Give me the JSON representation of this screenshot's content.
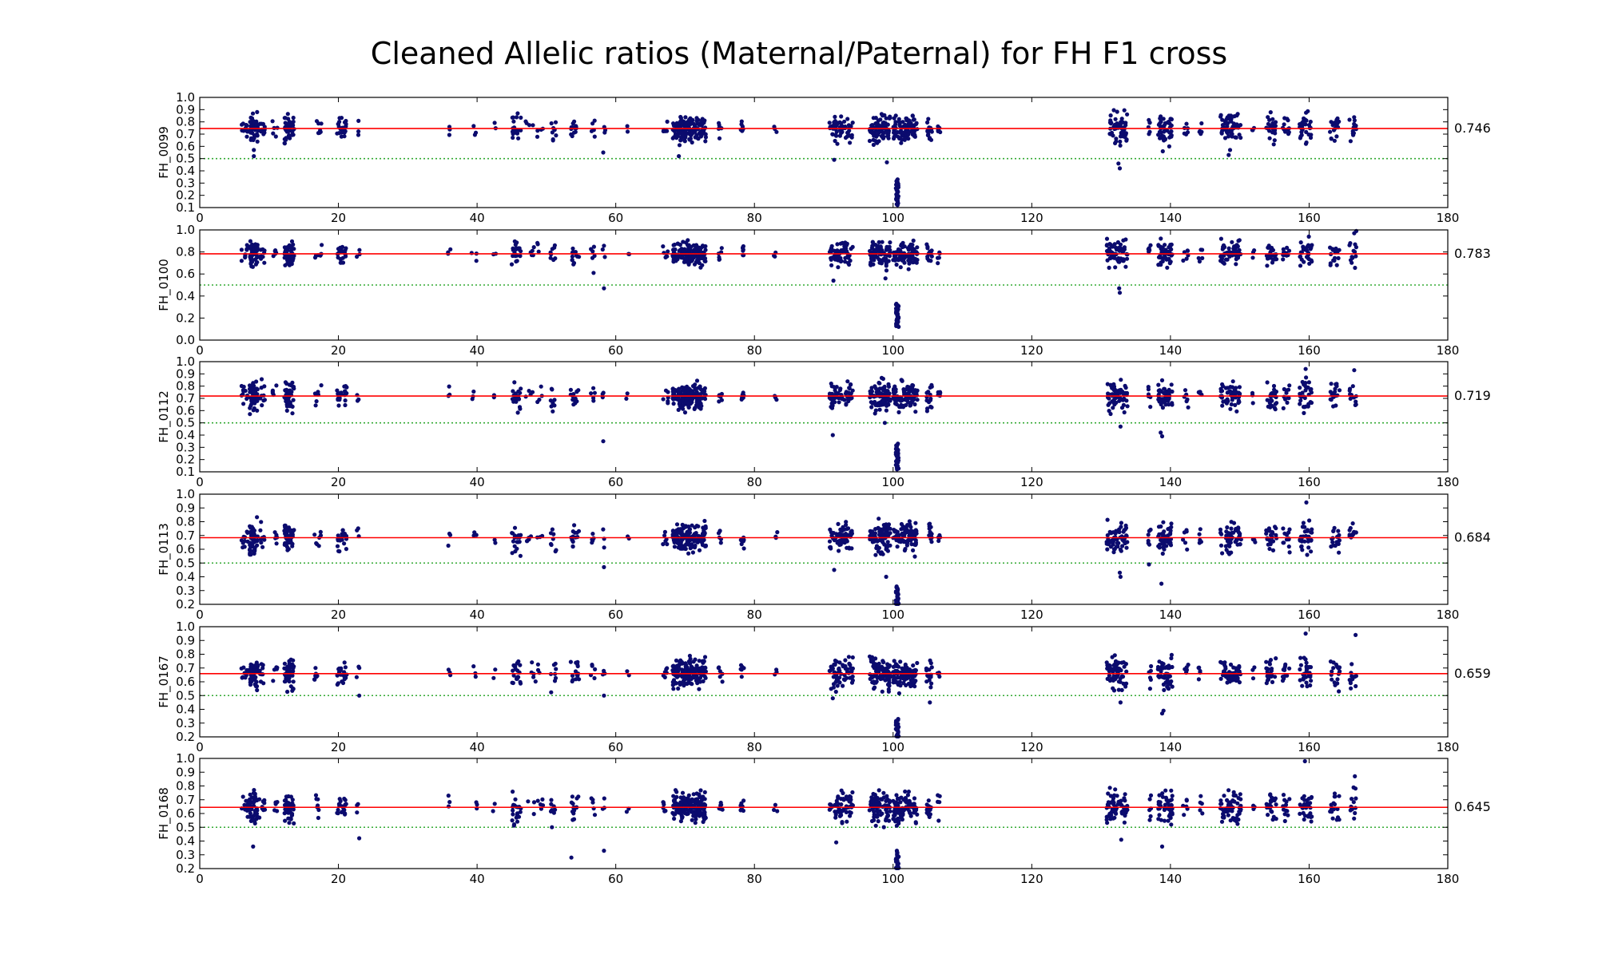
{
  "title": "Cleaned Allelic ratios (Maternal/Paternal) for FH F1 cross",
  "colors": {
    "points": "#0b0b6e",
    "mean_line": "#ff0000",
    "half_line": "#33aa33",
    "axes": "#000000"
  },
  "chart_data": [
    {
      "type": "scatter",
      "ylabel": "FH_0099",
      "mean": 0.746,
      "mean_label": "0.746",
      "reference": 0.5,
      "xlim": [
        0,
        180
      ],
      "ylim": [
        0.1,
        1.0
      ],
      "xticks": [
        "0",
        "20",
        "40",
        "60",
        "80",
        "100",
        "120",
        "140",
        "160",
        "180"
      ],
      "yticks": [
        "0.1",
        "0.2",
        "0.3",
        "0.4",
        "0.5",
        "0.6",
        "0.7",
        "0.8",
        "0.9",
        "1.0"
      ],
      "outliers": [
        [
          7.8,
          0.57
        ],
        [
          7.8,
          0.52
        ],
        [
          58.2,
          0.55
        ],
        [
          69.1,
          0.52
        ],
        [
          91.5,
          0.49
        ],
        [
          99.1,
          0.47
        ],
        [
          132.5,
          0.46
        ],
        [
          132.7,
          0.42
        ],
        [
          138.9,
          0.56
        ],
        [
          148.4,
          0.53
        ],
        [
          148.6,
          0.57
        ]
      ]
    },
    {
      "type": "scatter",
      "ylabel": "FH_0100",
      "mean": 0.783,
      "mean_label": "0.783",
      "reference": 0.5,
      "xlim": [
        0,
        180
      ],
      "ylim": [
        0.0,
        1.0
      ],
      "xticks": [
        "0",
        "20",
        "40",
        "60",
        "80",
        "100",
        "120",
        "140",
        "160",
        "180"
      ],
      "yticks": [
        "0.0",
        "0.2",
        "0.4",
        "0.6",
        "0.8",
        "1.0"
      ],
      "outliers": [
        [
          58.3,
          0.47
        ],
        [
          56.8,
          0.61
        ],
        [
          91.4,
          0.54
        ],
        [
          98.9,
          0.56
        ],
        [
          132.6,
          0.47
        ],
        [
          132.7,
          0.43
        ],
        [
          166.5,
          0.97
        ],
        [
          166.8,
          0.99
        ]
      ]
    },
    {
      "type": "scatter",
      "ylabel": "FH_0112",
      "mean": 0.719,
      "mean_label": "0.719",
      "reference": 0.5,
      "xlim": [
        0,
        180
      ],
      "ylim": [
        0.1,
        1.0
      ],
      "xticks": [
        "0",
        "20",
        "40",
        "60",
        "80",
        "100",
        "120",
        "140",
        "160",
        "180"
      ],
      "yticks": [
        "0.1",
        "0.2",
        "0.3",
        "0.4",
        "0.5",
        "0.6",
        "0.7",
        "0.8",
        "0.9",
        "1.0"
      ],
      "outliers": [
        [
          58.2,
          0.35
        ],
        [
          91.3,
          0.4
        ],
        [
          98.8,
          0.5
        ],
        [
          132.8,
          0.47
        ],
        [
          138.6,
          0.42
        ],
        [
          138.8,
          0.39
        ],
        [
          159.5,
          0.94
        ],
        [
          166.5,
          0.93
        ]
      ]
    },
    {
      "type": "scatter",
      "ylabel": "FH_0113",
      "mean": 0.684,
      "mean_label": "0.684",
      "reference": 0.5,
      "xlim": [
        0,
        180
      ],
      "ylim": [
        0.2,
        1.0
      ],
      "xticks": [
        "0",
        "20",
        "40",
        "60",
        "80",
        "100",
        "120",
        "140",
        "160",
        "180"
      ],
      "yticks": [
        "0.2",
        "0.3",
        "0.4",
        "0.5",
        "0.6",
        "0.7",
        "0.8",
        "0.9",
        "1.0"
      ],
      "outliers": [
        [
          58.3,
          0.47
        ],
        [
          91.5,
          0.45
        ],
        [
          99.0,
          0.4
        ],
        [
          132.7,
          0.43
        ],
        [
          132.8,
          0.4
        ],
        [
          136.9,
          0.49
        ],
        [
          138.7,
          0.35
        ],
        [
          159.6,
          0.94
        ]
      ]
    },
    {
      "type": "scatter",
      "ylabel": "FH_0167",
      "mean": 0.659,
      "mean_label": "0.659",
      "reference": 0.5,
      "xlim": [
        0,
        180
      ],
      "ylim": [
        0.2,
        1.0
      ],
      "xticks": [
        "0",
        "20",
        "40",
        "60",
        "80",
        "100",
        "120",
        "140",
        "160",
        "180"
      ],
      "yticks": [
        "0.2",
        "0.3",
        "0.4",
        "0.5",
        "0.6",
        "0.7",
        "0.8",
        "0.9",
        "1.0"
      ],
      "outliers": [
        [
          23.0,
          0.5
        ],
        [
          58.3,
          0.5
        ],
        [
          91.3,
          0.48
        ],
        [
          105.3,
          0.45
        ],
        [
          132.8,
          0.45
        ],
        [
          138.8,
          0.37
        ],
        [
          139.0,
          0.39
        ],
        [
          159.5,
          0.95
        ],
        [
          166.7,
          0.94
        ]
      ]
    },
    {
      "type": "scatter",
      "ylabel": "FH_0168",
      "mean": 0.645,
      "mean_label": "0.645",
      "reference": 0.5,
      "xlim": [
        0,
        180
      ],
      "ylim": [
        0.2,
        1.0
      ],
      "xticks": [
        "0",
        "20",
        "40",
        "60",
        "80",
        "100",
        "120",
        "140",
        "160",
        "180"
      ],
      "yticks": [
        "0.2",
        "0.3",
        "0.4",
        "0.5",
        "0.6",
        "0.7",
        "0.8",
        "0.9",
        "1.0"
      ],
      "outliers": [
        [
          7.7,
          0.36
        ],
        [
          23.0,
          0.42
        ],
        [
          53.6,
          0.28
        ],
        [
          58.3,
          0.33
        ],
        [
          91.8,
          0.39
        ],
        [
          132.9,
          0.41
        ],
        [
          138.8,
          0.36
        ],
        [
          159.4,
          0.98
        ],
        [
          166.6,
          0.87
        ]
      ]
    }
  ],
  "marker_clusters": [
    {
      "x": [
        6.0,
        7.0
      ],
      "n": 10,
      "spread": 0.05
    },
    {
      "x": [
        7.2,
        8.4
      ],
      "n": 50,
      "spread": 0.07
    },
    {
      "x": [
        8.6,
        9.4
      ],
      "n": 9,
      "spread": 0.06
    },
    {
      "x": [
        10.5,
        11.2
      ],
      "n": 5,
      "spread": 0.04
    },
    {
      "x": [
        12.2,
        13.6
      ],
      "n": 44,
      "spread": 0.07
    },
    {
      "x": [
        16.5,
        17.6
      ],
      "n": 7,
      "spread": 0.05
    },
    {
      "x": [
        19.8,
        21.2
      ],
      "n": 22,
      "spread": 0.05
    },
    {
      "x": [
        22.6,
        23.1
      ],
      "n": 3,
      "spread": 0.05
    },
    {
      "x": [
        35.8,
        36.2
      ],
      "n": 3,
      "spread": 0.04
    },
    {
      "x": [
        39.2,
        40.0
      ],
      "n": 3,
      "spread": 0.03
    },
    {
      "x": [
        42.3,
        42.7
      ],
      "n": 2,
      "spread": 0.03
    },
    {
      "x": [
        45.0,
        46.3
      ],
      "n": 20,
      "spread": 0.06
    },
    {
      "x": [
        47.0,
        49.5
      ],
      "n": 8,
      "spread": 0.05
    },
    {
      "x": [
        50.6,
        51.4
      ],
      "n": 8,
      "spread": 0.07
    },
    {
      "x": [
        53.5,
        54.7
      ],
      "n": 14,
      "spread": 0.05
    },
    {
      "x": [
        56.4,
        57.0
      ],
      "n": 5,
      "spread": 0.05
    },
    {
      "x": [
        58.1,
        58.5
      ],
      "n": 3,
      "spread": 0.05
    },
    {
      "x": [
        61.5,
        62.0
      ],
      "n": 2,
      "spread": 0.03
    },
    {
      "x": [
        66.8,
        67.6
      ],
      "n": 6,
      "spread": 0.04
    },
    {
      "x": [
        68.2,
        73.0
      ],
      "n": 150,
      "spread": 0.06
    },
    {
      "x": [
        74.8,
        75.4
      ],
      "n": 6,
      "spread": 0.04
    },
    {
      "x": [
        78.0,
        78.5
      ],
      "n": 7,
      "spread": 0.04
    },
    {
      "x": [
        82.8,
        83.3
      ],
      "n": 3,
      "spread": 0.03
    },
    {
      "x": [
        90.8,
        94.2
      ],
      "n": 60,
      "spread": 0.06
    },
    {
      "x": [
        96.6,
        99.6
      ],
      "n": 80,
      "spread": 0.07
    },
    {
      "x": [
        100.0,
        103.5
      ],
      "n": 90,
      "spread": 0.06
    },
    {
      "x": [
        104.8,
        105.6
      ],
      "n": 15,
      "spread": 0.06
    },
    {
      "x": [
        106.4,
        106.8
      ],
      "n": 5,
      "spread": 0.05
    },
    {
      "x": [
        130.8,
        133.8
      ],
      "n": 60,
      "spread": 0.07
    },
    {
      "x": [
        136.8,
        137.2
      ],
      "n": 6,
      "spread": 0.05
    },
    {
      "x": [
        138.2,
        140.3
      ],
      "n": 45,
      "spread": 0.07
    },
    {
      "x": [
        141.8,
        142.6
      ],
      "n": 6,
      "spread": 0.05
    },
    {
      "x": [
        144.0,
        144.6
      ],
      "n": 5,
      "spread": 0.04
    },
    {
      "x": [
        147.2,
        150.2
      ],
      "n": 55,
      "spread": 0.06
    },
    {
      "x": [
        151.8,
        152.3
      ],
      "n": 3,
      "spread": 0.04
    },
    {
      "x": [
        153.8,
        155.3
      ],
      "n": 25,
      "spread": 0.06
    },
    {
      "x": [
        156.2,
        157.2
      ],
      "n": 12,
      "spread": 0.05
    },
    {
      "x": [
        158.6,
        160.4
      ],
      "n": 30,
      "spread": 0.07
    },
    {
      "x": [
        163.0,
        164.4
      ],
      "n": 18,
      "spread": 0.06
    },
    {
      "x": [
        165.8,
        166.8
      ],
      "n": 12,
      "spread": 0.07
    }
  ],
  "low_stack": {
    "x": 100.6,
    "ymin": 0.12,
    "ymax": 0.33,
    "n": 30
  }
}
